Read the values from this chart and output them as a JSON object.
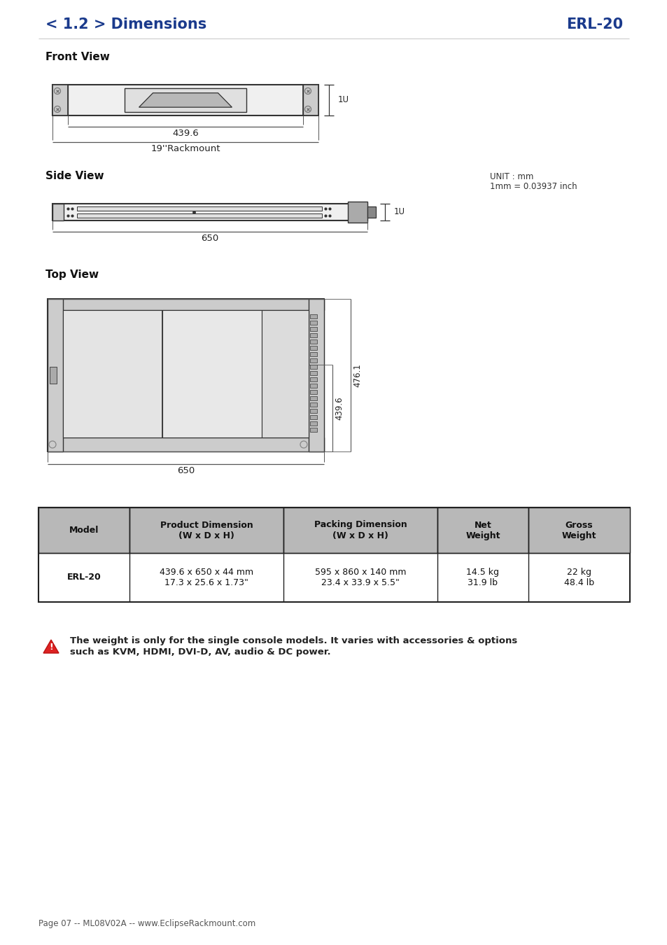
{
  "title_left": "< 1.2 > Dimensions",
  "title_right": "ERL-20",
  "title_color": "#1a3a8c",
  "bg_color": "#ffffff",
  "section_front": "Front View",
  "section_side": "Side View",
  "section_top": "Top View",
  "unit_note_line1": "UNIT : mm",
  "unit_note_line2": "1mm = 0.03937 inch",
  "dim_439_6": "439.6",
  "dim_19rack": "19''Rackmount",
  "dim_1u": "1U",
  "dim_650": "650",
  "dim_top_439": "439.6",
  "dim_top_476": "476.1",
  "dim_top_650": "650",
  "table_header": [
    "Model",
    "Product Dimension\n(W x D x H)",
    "Packing Dimension\n(W x D x H)",
    "Net\nWeight",
    "Gross\nWeight"
  ],
  "table_row": [
    "ERL-20",
    "439.6 x 650 x 44 mm\n17.3 x 25.6 x 1.73\"",
    "595 x 860 x 140 mm\n23.4 x 33.9 x 5.5\"",
    "14.5 kg\n31.9 lb",
    "22 kg\n48.4 lb"
  ],
  "warning_text_bold": "The weight is only for the single console models. It varies with accessories & options",
  "warning_text_bold2": "such as KVM, HDMI, DVI-D, AV, audio & DC power.",
  "footer": "Page 07 -- ML08V02A -- www.EclipseRackmount.com",
  "table_header_bg": "#b8b8b8",
  "table_border": "#333333",
  "drawing_color": "#333333",
  "drawing_lw": 1.2
}
